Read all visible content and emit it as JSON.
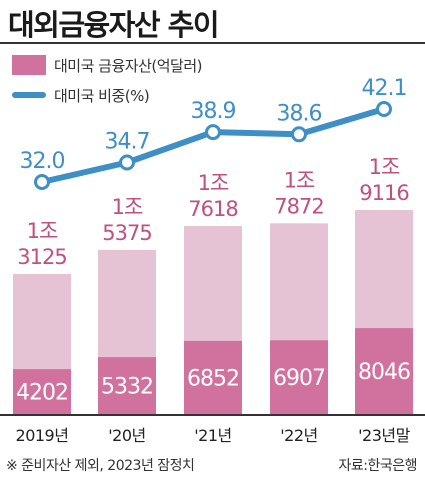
{
  "chart_data": {
    "type": "bar",
    "title": "대외금융자산 추이",
    "legend": [
      {
        "label": "대미국 금융자산(억달러)"
      },
      {
        "label": "대미국 비중(%)"
      }
    ],
    "categories": [
      "2019년",
      "'20년",
      "'21년",
      "'22년",
      "'23년말"
    ],
    "series": [
      {
        "name": "대미국 금융자산(억달러)",
        "type": "bar",
        "values": [
          4202,
          5332,
          6852,
          6907,
          8046
        ]
      },
      {
        "name": "대미국 비중(%)",
        "type": "line",
        "values": [
          32.0,
          34.7,
          38.9,
          38.6,
          42.1
        ]
      }
    ],
    "total_labels": [
      [
        "1조",
        "3125"
      ],
      [
        "1조",
        "5375"
      ],
      [
        "1조",
        "7618"
      ],
      [
        "1조",
        "7872"
      ],
      [
        "1조",
        "9116"
      ]
    ],
    "totals": [
      13125,
      15375,
      17618,
      17872,
      19116
    ],
    "bar_labels": [
      "4202",
      "5332",
      "6852",
      "6907",
      "8046"
    ],
    "line_labels": [
      "32.0",
      "34.7",
      "38.9",
      "38.6",
      "42.1"
    ],
    "footnote": "※ 준비자산 제외, 2023년 잠정치",
    "source": "자료:한국은행",
    "colors": {
      "bar_total": "#e6c3d4",
      "bar_us": "#d0729d",
      "line": "#3e8fc6",
      "line_label": "#3e8fc6",
      "total_label": "#c0507e",
      "bar_label": "#ffffff",
      "axis": "#333333"
    }
  }
}
